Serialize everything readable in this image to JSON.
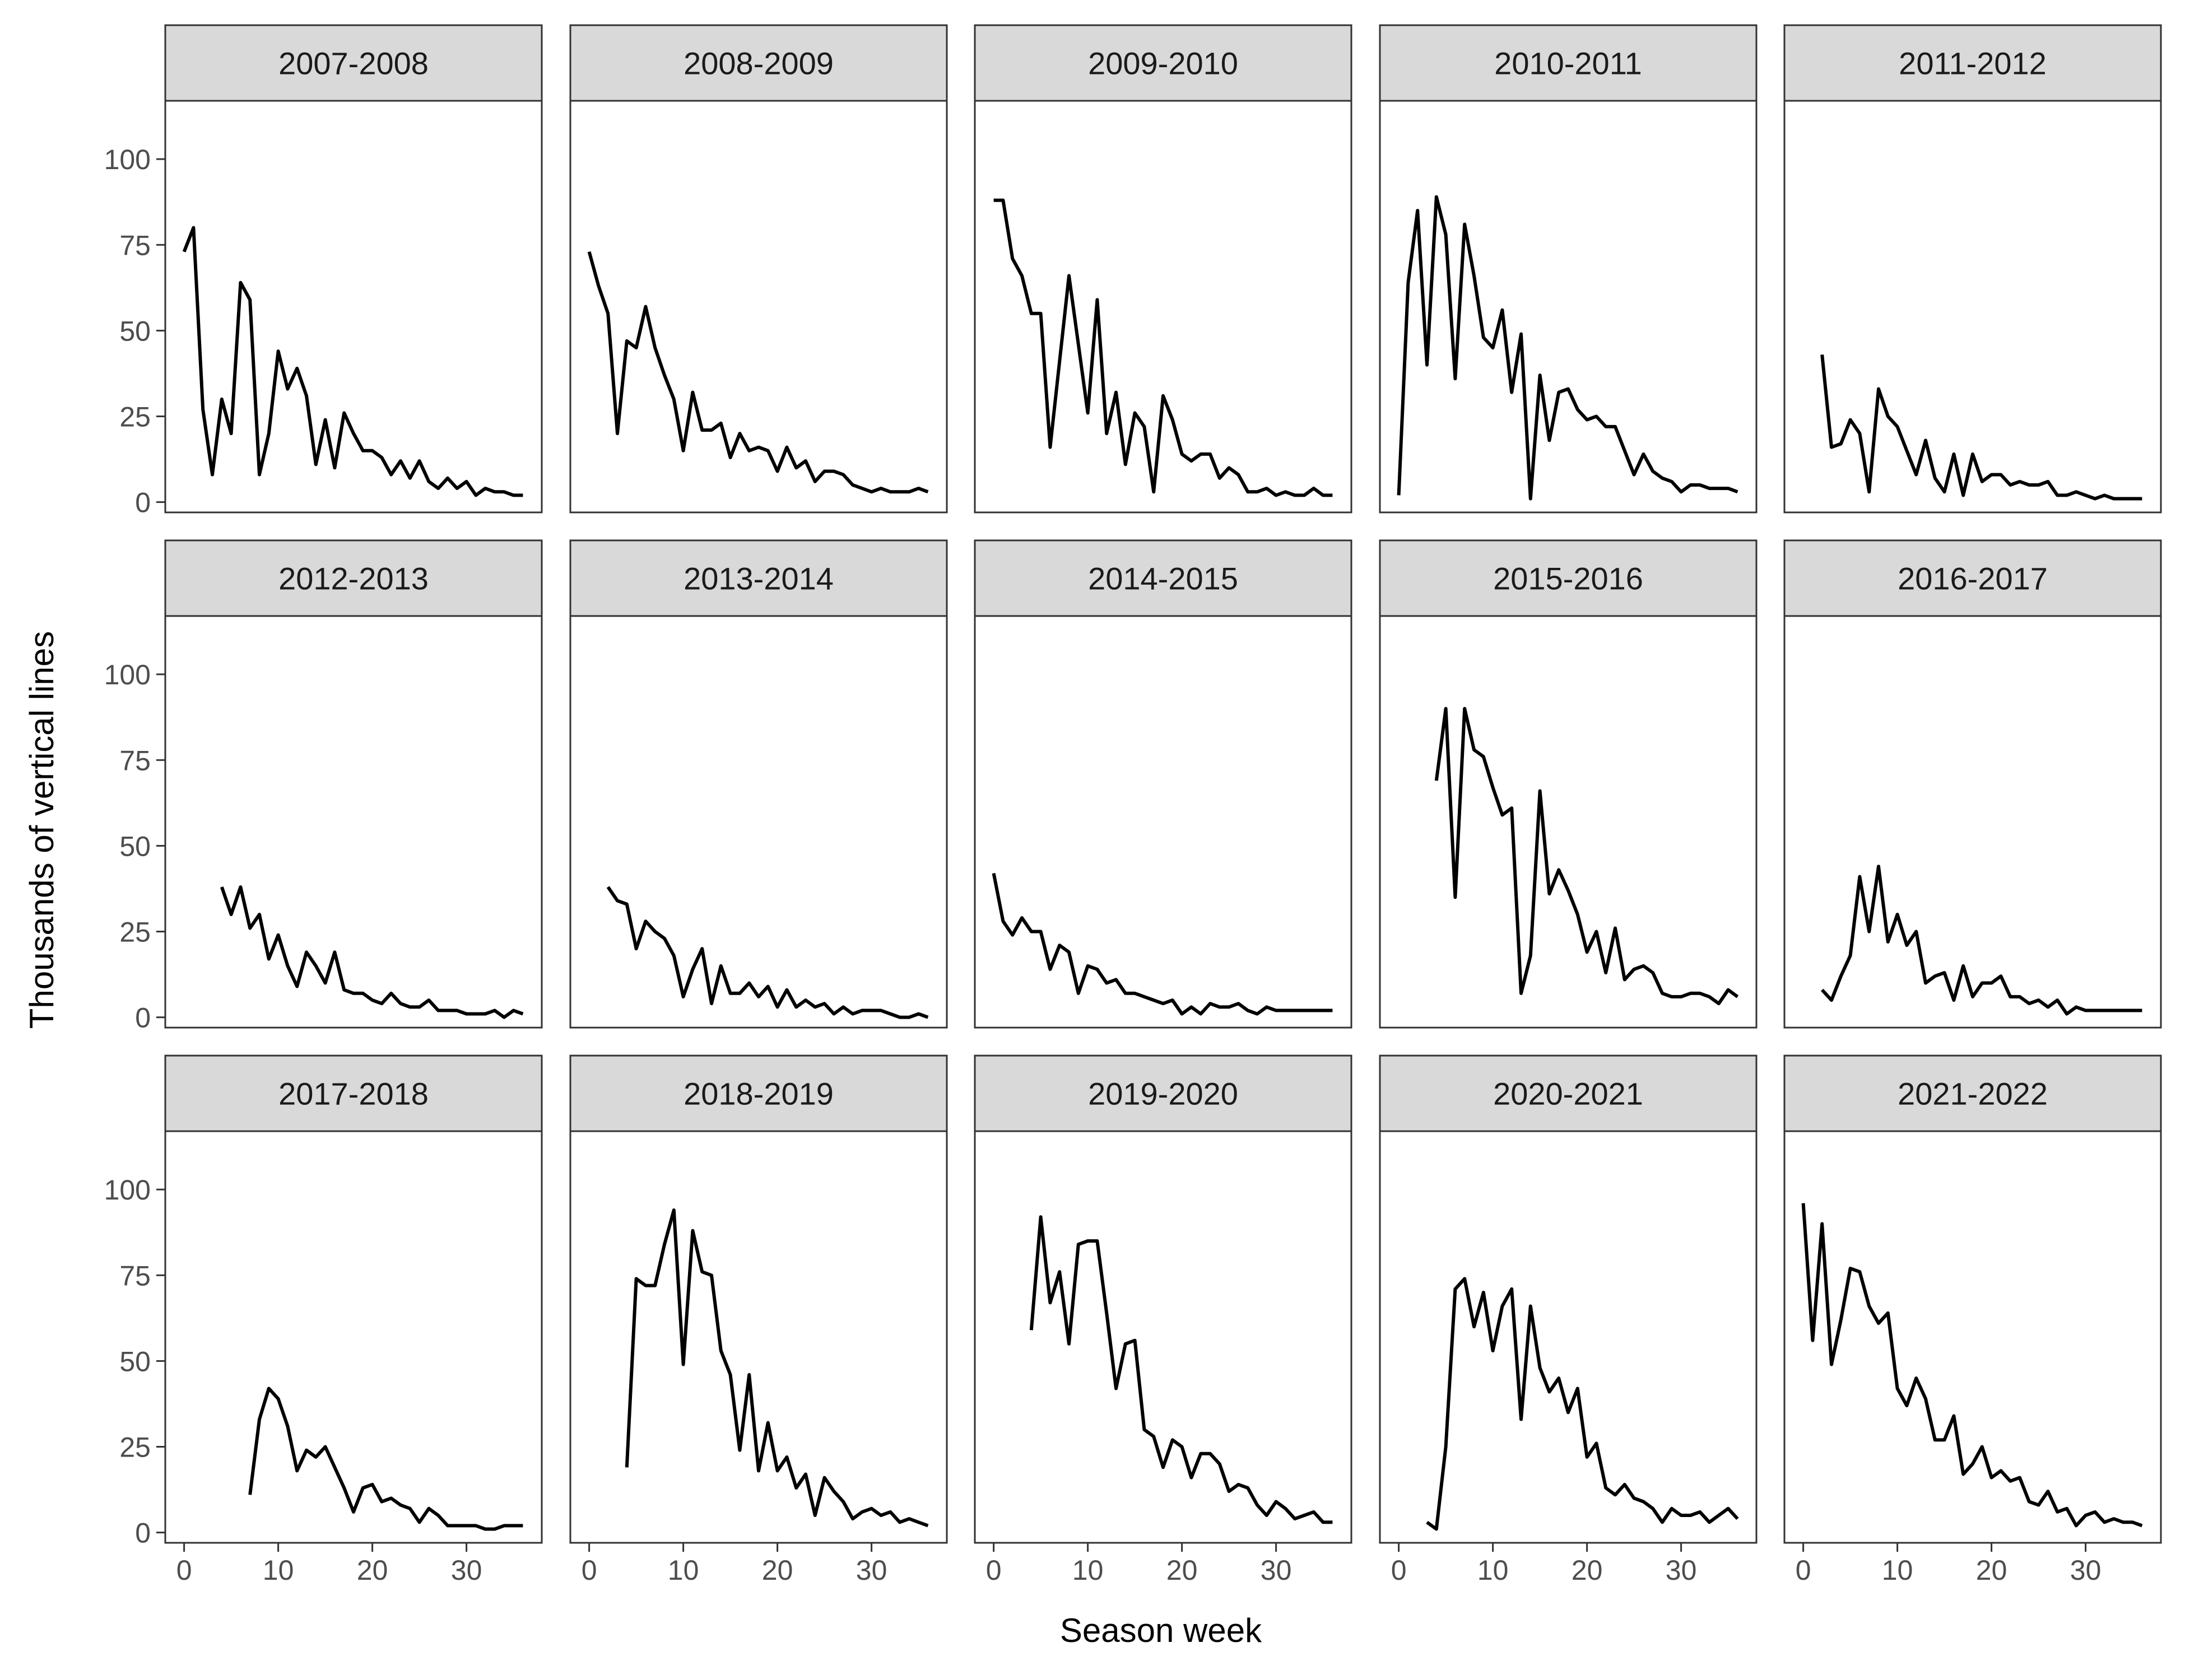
{
  "chart_data": {
    "type": "line",
    "layout": "facet-grid",
    "xlabel": "Season week",
    "ylabel": "Thousands of vertical lines",
    "xlim": [
      -2,
      38
    ],
    "ylim": [
      -3,
      117
    ],
    "xticks": [
      0,
      10,
      20,
      30
    ],
    "yticks": [
      0,
      25,
      50,
      75,
      100
    ],
    "grid": false,
    "colors": {
      "line": "#000000",
      "strip_fill": "#d9d9d9",
      "frame": "#333333",
      "axis_text": "#4d4d4d",
      "title_text": "#1a1a1a"
    },
    "panels": [
      {
        "season": "2007-2008",
        "x": [
          0,
          1,
          2,
          3,
          4,
          5,
          6,
          7,
          8,
          9,
          10,
          11,
          12,
          13,
          14,
          15,
          16,
          17,
          18,
          19,
          20,
          21,
          22,
          23,
          24,
          25,
          26,
          27,
          28,
          29,
          30,
          31,
          32,
          33,
          34,
          35,
          36
        ],
        "y": [
          73,
          80,
          27,
          8,
          30,
          20,
          64,
          59,
          8,
          20,
          44,
          33,
          39,
          31,
          11,
          24,
          10,
          26,
          20,
          15,
          15,
          13,
          8,
          12,
          7,
          12,
          6,
          4,
          7,
          4,
          6,
          2,
          4,
          3,
          3,
          2,
          2
        ]
      },
      {
        "season": "2008-2009",
        "x": [
          0,
          1,
          2,
          3,
          4,
          5,
          6,
          7,
          8,
          9,
          10,
          11,
          12,
          13,
          14,
          15,
          16,
          17,
          18,
          19,
          20,
          21,
          22,
          23,
          24,
          25,
          26,
          27,
          28,
          29,
          30,
          31,
          32,
          33,
          34,
          35,
          36
        ],
        "y": [
          73,
          63,
          55,
          20,
          47,
          45,
          57,
          45,
          37,
          30,
          15,
          32,
          21,
          21,
          23,
          13,
          20,
          15,
          16,
          15,
          9,
          16,
          10,
          12,
          6,
          9,
          9,
          8,
          5,
          4,
          3,
          4,
          3,
          3,
          3,
          4,
          3
        ]
      },
      {
        "season": "2009-2010",
        "x": [
          0,
          1,
          2,
          3,
          4,
          5,
          6,
          7,
          8,
          9,
          10,
          11,
          12,
          13,
          14,
          15,
          16,
          17,
          18,
          19,
          20,
          21,
          22,
          23,
          24,
          25,
          26,
          27,
          28,
          29,
          30,
          31,
          32,
          33,
          34,
          35,
          36
        ],
        "y": [
          88,
          88,
          71,
          66,
          55,
          55,
          16,
          41,
          66,
          46,
          26,
          59,
          20,
          32,
          11,
          26,
          22,
          3,
          31,
          24,
          14,
          12,
          14,
          14,
          7,
          10,
          8,
          3,
          3,
          4,
          2,
          3,
          2,
          2,
          4,
          2,
          2
        ]
      },
      {
        "season": "2010-2011",
        "x": [
          0,
          1,
          2,
          3,
          4,
          5,
          6,
          7,
          8,
          9,
          10,
          11,
          12,
          13,
          14,
          15,
          16,
          17,
          18,
          19,
          20,
          21,
          22,
          23,
          24,
          25,
          26,
          27,
          28,
          29,
          30,
          31,
          32,
          33,
          34,
          35,
          36
        ],
        "y": [
          2,
          64,
          85,
          40,
          89,
          78,
          36,
          81,
          66,
          48,
          45,
          56,
          32,
          49,
          1,
          37,
          18,
          32,
          33,
          27,
          24,
          25,
          22,
          22,
          15,
          8,
          14,
          9,
          7,
          6,
          3,
          5,
          5,
          4,
          4,
          4,
          3
        ]
      },
      {
        "season": "2011-2012",
        "x": [
          2,
          3,
          4,
          5,
          6,
          7,
          8,
          9,
          10,
          11,
          12,
          13,
          14,
          15,
          16,
          17,
          18,
          19,
          20,
          21,
          22,
          23,
          24,
          25,
          26,
          27,
          28,
          29,
          30,
          31,
          32,
          33,
          34,
          35,
          36
        ],
        "y": [
          43,
          16,
          17,
          24,
          20,
          3,
          33,
          25,
          22,
          15,
          8,
          18,
          7,
          3,
          14,
          2,
          14,
          6,
          8,
          8,
          5,
          6,
          5,
          5,
          6,
          2,
          2,
          3,
          2,
          1,
          2,
          1,
          1,
          1,
          1
        ]
      },
      {
        "season": "2012-2013",
        "x": [
          4,
          5,
          6,
          7,
          8,
          9,
          10,
          11,
          12,
          13,
          14,
          15,
          16,
          17,
          18,
          19,
          20,
          21,
          22,
          23,
          24,
          25,
          26,
          27,
          28,
          29,
          30,
          31,
          32,
          33,
          34,
          35,
          36
        ],
        "y": [
          38,
          30,
          38,
          26,
          30,
          17,
          24,
          15,
          9,
          19,
          15,
          10,
          19,
          8,
          7,
          7,
          5,
          4,
          7,
          4,
          3,
          3,
          5,
          2,
          2,
          2,
          1,
          1,
          1,
          2,
          0,
          2,
          1
        ]
      },
      {
        "season": "2013-2014",
        "x": [
          2,
          3,
          4,
          5,
          6,
          7,
          8,
          9,
          10,
          11,
          12,
          13,
          14,
          15,
          16,
          17,
          18,
          19,
          20,
          21,
          22,
          23,
          24,
          25,
          26,
          27,
          28,
          29,
          30,
          31,
          32,
          33,
          34,
          35,
          36
        ],
        "y": [
          38,
          34,
          33,
          20,
          28,
          25,
          23,
          18,
          6,
          14,
          20,
          4,
          15,
          7,
          7,
          10,
          6,
          9,
          3,
          8,
          3,
          5,
          3,
          4,
          1,
          3,
          1,
          2,
          2,
          2,
          1,
          0,
          0,
          1,
          0
        ]
      },
      {
        "season": "2014-2015",
        "x": [
          0,
          1,
          2,
          3,
          4,
          5,
          6,
          7,
          8,
          9,
          10,
          11,
          12,
          13,
          14,
          15,
          16,
          17,
          18,
          19,
          20,
          21,
          22,
          23,
          24,
          25,
          26,
          27,
          28,
          29,
          30,
          31,
          32,
          33,
          34,
          35,
          36
        ],
        "y": [
          42,
          28,
          24,
          29,
          25,
          25,
          14,
          21,
          19,
          7,
          15,
          14,
          10,
          11,
          7,
          7,
          6,
          5,
          4,
          5,
          1,
          3,
          1,
          4,
          3,
          3,
          4,
          2,
          1,
          3,
          2,
          2,
          2,
          2,
          2,
          2,
          2
        ]
      },
      {
        "season": "2015-2016",
        "x": [
          4,
          5,
          6,
          7,
          8,
          9,
          10,
          11,
          12,
          13,
          14,
          15,
          16,
          17,
          18,
          19,
          20,
          21,
          22,
          23,
          24,
          25,
          26,
          27,
          28,
          29,
          30,
          31,
          32,
          33,
          34,
          35,
          36
        ],
        "y": [
          69,
          90,
          35,
          90,
          78,
          76,
          67,
          59,
          61,
          7,
          18,
          66,
          36,
          43,
          37,
          30,
          19,
          25,
          13,
          26,
          11,
          14,
          15,
          13,
          7,
          6,
          6,
          7,
          7,
          6,
          4,
          8,
          6
        ]
      },
      {
        "season": "2016-2017",
        "x": [
          2,
          3,
          4,
          5,
          6,
          7,
          8,
          9,
          10,
          11,
          12,
          13,
          14,
          15,
          16,
          17,
          18,
          19,
          20,
          21,
          22,
          23,
          24,
          25,
          26,
          27,
          28,
          29,
          30,
          31,
          32,
          33,
          34,
          35,
          36
        ],
        "y": [
          8,
          5,
          12,
          18,
          41,
          25,
          44,
          22,
          30,
          21,
          25,
          10,
          12,
          13,
          5,
          15,
          6,
          10,
          10,
          12,
          6,
          6,
          4,
          5,
          3,
          5,
          1,
          3,
          2,
          2,
          2,
          2,
          2,
          2,
          2
        ]
      },
      {
        "season": "2017-2018",
        "x": [
          7,
          8,
          9,
          10,
          11,
          12,
          13,
          14,
          15,
          16,
          17,
          18,
          19,
          20,
          21,
          22,
          23,
          24,
          25,
          26,
          27,
          28,
          29,
          30,
          31,
          32,
          33,
          34,
          35,
          36
        ],
        "y": [
          11,
          33,
          42,
          39,
          31,
          18,
          24,
          22,
          25,
          19,
          13,
          6,
          13,
          14,
          9,
          10,
          8,
          7,
          3,
          7,
          5,
          2,
          2,
          2,
          2,
          1,
          1,
          2,
          2,
          2
        ]
      },
      {
        "season": "2018-2019",
        "x": [
          4,
          5,
          6,
          7,
          8,
          9,
          10,
          11,
          12,
          13,
          14,
          15,
          16,
          17,
          18,
          19,
          20,
          21,
          22,
          23,
          24,
          25,
          26,
          27,
          28,
          29,
          30,
          31,
          32,
          33,
          34,
          35,
          36
        ],
        "y": [
          19,
          74,
          72,
          72,
          84,
          94,
          49,
          88,
          76,
          75,
          53,
          46,
          24,
          46,
          18,
          32,
          18,
          22,
          13,
          17,
          5,
          16,
          12,
          9,
          4,
          6,
          7,
          5,
          6,
          3,
          4,
          3,
          2
        ]
      },
      {
        "season": "2019-2020",
        "x": [
          4,
          5,
          6,
          7,
          8,
          9,
          10,
          11,
          12,
          13,
          14,
          15,
          16,
          17,
          18,
          19,
          20,
          21,
          22,
          23,
          24,
          25,
          26,
          27,
          28,
          29,
          30,
          31,
          32,
          33,
          34,
          35,
          36
        ],
        "y": [
          59,
          92,
          67,
          76,
          55,
          84,
          85,
          85,
          64,
          42,
          55,
          56,
          30,
          28,
          19,
          27,
          25,
          16,
          23,
          23,
          20,
          12,
          14,
          13,
          8,
          5,
          9,
          7,
          4,
          5,
          6,
          3,
          3
        ]
      },
      {
        "season": "2020-2021",
        "x": [
          3,
          4,
          5,
          6,
          7,
          8,
          9,
          10,
          11,
          12,
          13,
          14,
          15,
          16,
          17,
          18,
          19,
          20,
          21,
          22,
          23,
          24,
          25,
          26,
          27,
          28,
          29,
          30,
          31,
          32,
          33,
          34,
          35,
          36
        ],
        "y": [
          3,
          1,
          25,
          71,
          74,
          60,
          70,
          53,
          66,
          71,
          33,
          66,
          48,
          41,
          45,
          35,
          42,
          22,
          26,
          13,
          11,
          14,
          10,
          9,
          7,
          3,
          7,
          5,
          5,
          6,
          3,
          5,
          7,
          4
        ]
      },
      {
        "season": "2021-2022",
        "x": [
          0,
          1,
          2,
          3,
          4,
          5,
          6,
          7,
          8,
          9,
          10,
          11,
          12,
          13,
          14,
          15,
          16,
          17,
          18,
          19,
          20,
          21,
          22,
          23,
          24,
          25,
          26,
          27,
          28,
          29,
          30,
          31,
          32,
          33,
          34,
          35,
          36
        ],
        "y": [
          96,
          56,
          90,
          49,
          62,
          77,
          76,
          66,
          61,
          64,
          42,
          37,
          45,
          39,
          27,
          27,
          34,
          17,
          20,
          25,
          16,
          18,
          15,
          16,
          9,
          8,
          12,
          6,
          7,
          2,
          5,
          6,
          3,
          4,
          3,
          3,
          2
        ]
      }
    ]
  }
}
